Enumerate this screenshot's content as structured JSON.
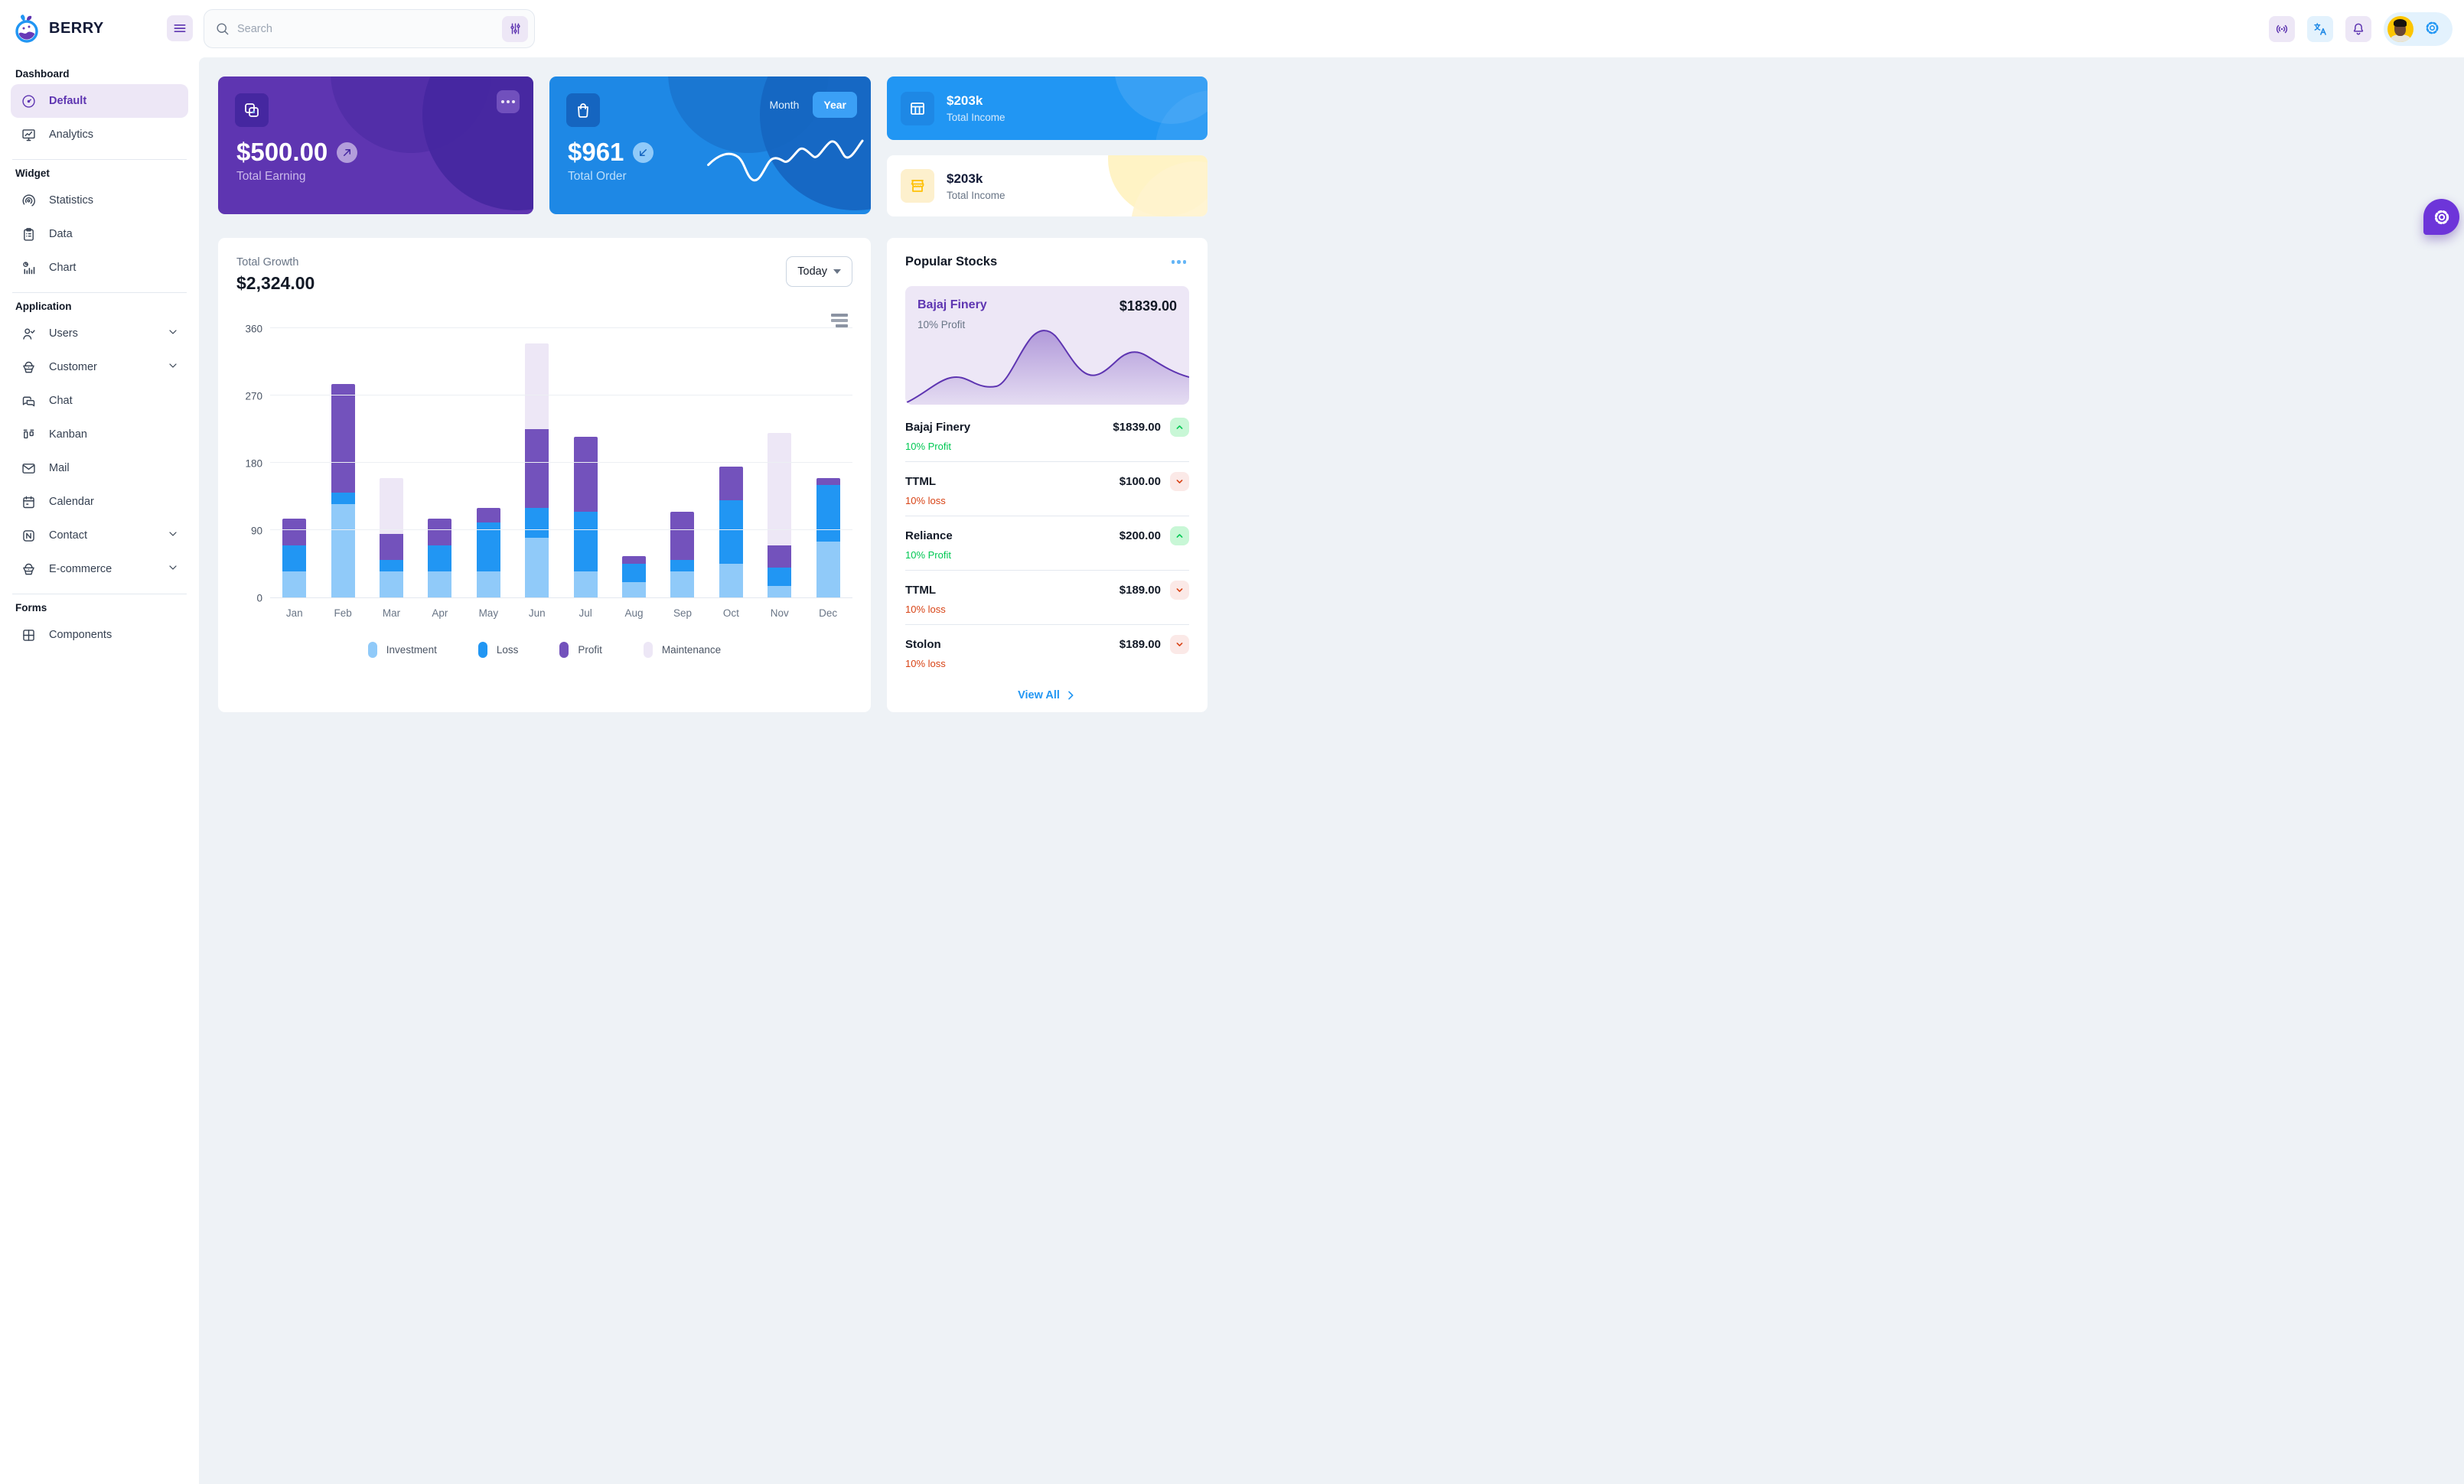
{
  "colors": {
    "primary": "#2196f3",
    "primary_dark": "#1e88e5",
    "primary_light": "#90caf9",
    "secondary": "#673ab7",
    "secondary_dark": "#5e35b1",
    "secondary_light": "#ede7f6",
    "success": "#00c853",
    "success_light": "#b9f6ca",
    "error": "#d84315",
    "error_light": "#fbe9e7",
    "warning": "#ffc107",
    "warning_light": "#fff8e1",
    "page_bg": "#eef2f6"
  },
  "header": {
    "brand": "BERRY",
    "search": {
      "placeholder": "Search"
    }
  },
  "sidebar": {
    "sections": [
      {
        "label": "Dashboard",
        "items": [
          {
            "label": "Default",
            "icon": "gauge",
            "active": true
          },
          {
            "label": "Analytics",
            "icon": "monitor"
          }
        ]
      },
      {
        "label": "Widget",
        "items": [
          {
            "label": "Statistics",
            "icon": "statistics"
          },
          {
            "label": "Data",
            "icon": "data"
          },
          {
            "label": "Chart",
            "icon": "chart"
          }
        ]
      },
      {
        "label": "Application",
        "items": [
          {
            "label": "Users",
            "icon": "users",
            "expandable": true
          },
          {
            "label": "Customer",
            "icon": "basket",
            "expandable": true
          },
          {
            "label": "Chat",
            "icon": "chat"
          },
          {
            "label": "Kanban",
            "icon": "kanban"
          },
          {
            "label": "Mail",
            "icon": "mail"
          },
          {
            "label": "Calendar",
            "icon": "calendar"
          },
          {
            "label": "Contact",
            "icon": "contact",
            "expandable": true
          },
          {
            "label": "E-commerce",
            "icon": "basket",
            "expandable": true
          }
        ]
      },
      {
        "label": "Forms",
        "items": [
          {
            "label": "Components",
            "icon": "components",
            "partial": true
          }
        ]
      }
    ]
  },
  "cards": {
    "earning": {
      "amount": "$500.00",
      "label": "Total Earning"
    },
    "order": {
      "amount": "$961",
      "label": "Total Order",
      "toggle": {
        "month": "Month",
        "year": "Year",
        "selected": "Year"
      }
    },
    "income_primary": {
      "amount": "$203k",
      "label": "Total Income"
    },
    "income_warning": {
      "amount": "$203k",
      "label": "Total Income"
    }
  },
  "growth": {
    "label": "Total Growth",
    "amount": "$2,324.00",
    "range": "Today",
    "chart_data": {
      "type": "bar",
      "stacked": true,
      "categories": [
        "Jan",
        "Feb",
        "Mar",
        "Apr",
        "May",
        "Jun",
        "Jul",
        "Aug",
        "Sep",
        "Oct",
        "Nov",
        "Dec"
      ],
      "series": [
        {
          "name": "Investment",
          "color": "#90caf9",
          "values": [
            35,
            125,
            35,
            35,
            35,
            80,
            35,
            20,
            35,
            45,
            15,
            75
          ]
        },
        {
          "name": "Loss",
          "color": "#2196f3",
          "values": [
            35,
            15,
            15,
            35,
            65,
            40,
            80,
            25,
            15,
            85,
            25,
            75
          ]
        },
        {
          "name": "Profit",
          "color": "#7352bc",
          "values": [
            35,
            145,
            35,
            35,
            20,
            105,
            100,
            10,
            65,
            45,
            30,
            10
          ]
        },
        {
          "name": "Maintenance",
          "color": "#ede7f6",
          "values": [
            0,
            0,
            75,
            0,
            0,
            115,
            0,
            0,
            0,
            0,
            150,
            0
          ]
        }
      ],
      "ylim": [
        0,
        360
      ],
      "yticks": [
        0,
        90,
        180,
        270,
        360
      ],
      "grid": true,
      "legend_position": "bottom"
    }
  },
  "stocks": {
    "title": "Popular Stocks",
    "featured": {
      "name": "Bajaj Finery",
      "value": "$1839.00",
      "sub": "10% Profit"
    },
    "items": [
      {
        "name": "Bajaj Finery",
        "value": "$1839.00",
        "sub": "10% Profit",
        "trend": "up"
      },
      {
        "name": "TTML",
        "value": "$100.00",
        "sub": "10% loss",
        "trend": "down"
      },
      {
        "name": "Reliance",
        "value": "$200.00",
        "sub": "10% Profit",
        "trend": "up"
      },
      {
        "name": "TTML",
        "value": "$189.00",
        "sub": "10% loss",
        "trend": "down"
      },
      {
        "name": "Stolon",
        "value": "$189.00",
        "sub": "10% loss",
        "trend": "down"
      }
    ],
    "view_all": "View All"
  }
}
